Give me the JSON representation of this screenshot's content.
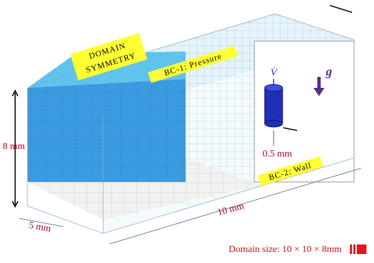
{
  "labels": {
    "symmetry": [
      "DOMAIN",
      "SYMMETRY"
    ],
    "bc1": "BC-1: Pressure",
    "bc2": "BC-2: Wall",
    "flow": "V̇",
    "gravity": "g",
    "height": "8 mm",
    "gap": "0.5 mm",
    "length": "10 mm",
    "depth": "5 mm"
  },
  "caption": "Domain size: 10 × 10 × 8mm"
}
